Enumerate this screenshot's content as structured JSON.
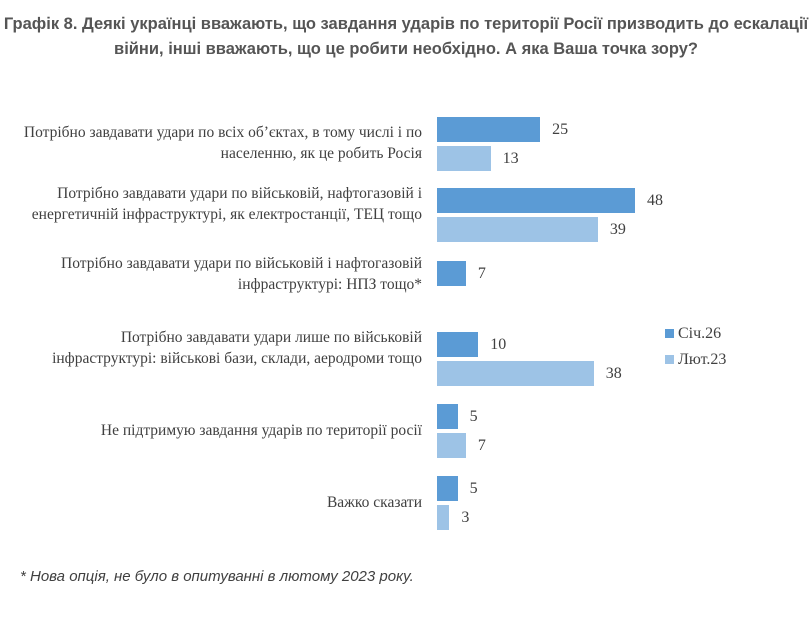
{
  "chart_data": {
    "type": "bar",
    "orientation": "horizontal",
    "title": "Графік 8. Деякі українці вважають, що завдання ударів по території Росії призводить до ескалації війни, інші вважають, що це робити необхідно. А яка Ваша точка зору?",
    "categories": [
      "Потрібно завдавати удари по всіх об’єктах, в тому числі і по населенню, як це робить Росія",
      "Потрібно завдавати удари по військовій, нафтогазовій і енергетичній інфраструктурі, як електростанції, ТЕЦ тощо",
      "Потрібно завдавати удари по військовій і нафтогазовій інфраструктурі: НПЗ тощо*",
      "Потрібно завдавати удари лише по військовій інфраструктурі: військові бази, склади, аеродроми тощо",
      "Не підтримую завдання ударів по території росії",
      "Важко сказати"
    ],
    "series": [
      {
        "name": "Січ.26",
        "color": "#5b9bd5",
        "values": [
          25,
          48,
          7,
          10,
          5,
          5
        ]
      },
      {
        "name": "Лют.23",
        "color": "#9dc3e6",
        "values": [
          13,
          39,
          null,
          38,
          7,
          3
        ]
      }
    ],
    "legend_position": "right",
    "grid": false,
    "xlim": [
      0,
      50
    ]
  },
  "footnote": "* Нова опція, не було в опитуванні в лютому 2023 року."
}
